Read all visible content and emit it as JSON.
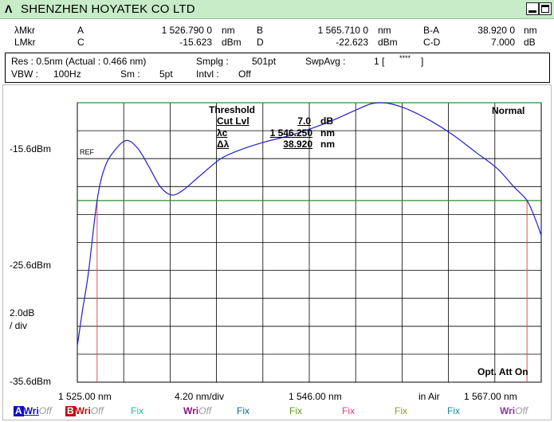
{
  "title_bar": {
    "logo": "Λ",
    "title": "SHENZHEN HOYATEK CO LTD"
  },
  "markers": {
    "row1_label": "λMkr",
    "row2_label": "LMkr",
    "A": {
      "name": "A",
      "value": "1 526.790 0",
      "unit": "nm"
    },
    "B": {
      "name": "B",
      "value": "1 565.710 0",
      "unit": "nm"
    },
    "BA": {
      "name": "B-A",
      "value": "38.920 0",
      "unit": "nm"
    },
    "C": {
      "name": "C",
      "value": "-15.623",
      "unit": "dBm"
    },
    "D": {
      "name": "D",
      "value": "-22.623",
      "unit": "dBm"
    },
    "CD": {
      "name": "C-D",
      "value": "7.000",
      "unit": "dB"
    }
  },
  "settings": {
    "res": "Res :  0.5nm  (Actual :  0.466 nm)",
    "smplg_label": "Smplg :",
    "smplg_value": "501pt",
    "swpavg_label": "SwpAvg :",
    "swpavg_value": "1 [",
    "swpavg_stars": "****",
    "swpavg_close": "]",
    "vbw_label": "VBW :",
    "vbw_value": "100Hz",
    "sm_label": "Sm :",
    "sm_value": "5pt",
    "intvl_label": "Intvl :",
    "intvl_value": "Off"
  },
  "threshold": {
    "title": "Threshold",
    "cut_lvl_label": "Cut Lvl",
    "cut_lvl_value": "7.0",
    "cut_lvl_unit": "dB",
    "lc_label": "λc",
    "lc_value": "1 546.250",
    "lc_unit": "nm",
    "dl_label": "Δλ",
    "dl_value": "38.920",
    "dl_unit": "nm"
  },
  "mode": "Normal",
  "opt_att": "Opt. Att On",
  "ref_label": "REF",
  "y_axis": {
    "top": "-15.6dBm",
    "mid": "-25.6dBm",
    "scale": "2.0dB",
    "per_div": "/ div",
    "bottom": "-35.6dBm"
  },
  "x_axis": {
    "start": "1 525.00 nm",
    "span_per_div": "4.20 nm/div",
    "center": "1 546.00 nm",
    "medium": "in Air",
    "stop": "1 567.00 nm"
  },
  "traces": [
    {
      "id": "A",
      "mode": "Wri",
      "state": "Off",
      "color": "#1010c0"
    },
    {
      "id": "B",
      "mode": "Wri",
      "state": "Off",
      "color": "#c01010"
    },
    {
      "id": "C",
      "mode": "Fix",
      "color": "#18c098"
    },
    {
      "id": "D",
      "mode": "Wri",
      "state": "Off",
      "color": "#801880"
    },
    {
      "id": "E",
      "mode": "Fix",
      "color": "#106888"
    },
    {
      "id": "F",
      "mode": "Fix",
      "color": "#609818"
    },
    {
      "id": "G",
      "mode": "Fix",
      "color": "#e83888"
    },
    {
      "id": "H",
      "mode": "Fix",
      "color": "#a09818"
    },
    {
      "id": "I",
      "mode": "Fix",
      "color": "#188898"
    },
    {
      "id": "J",
      "mode": "Wri",
      "state": "Off",
      "color": "#883898"
    }
  ],
  "chart_data": {
    "type": "line",
    "x_unit": "nm",
    "y_unit": "dBm",
    "xlim": [
      1525.0,
      1567.0
    ],
    "ylim": [
      -35.6,
      -15.6
    ],
    "x_divisions": 10,
    "y_divisions": 10,
    "ref_level": -15.6,
    "threshold_level": -22.6,
    "marker_lines": [
      1526.79,
      1565.71
    ],
    "series": [
      {
        "color": "#2020c8",
        "points": [
          [
            1525.0,
            -33.0
          ],
          [
            1525.5,
            -30.3
          ],
          [
            1526.0,
            -27.8
          ],
          [
            1526.79,
            -22.6
          ],
          [
            1527.5,
            -20.2
          ],
          [
            1528.5,
            -18.9
          ],
          [
            1529.5,
            -18.3
          ],
          [
            1530.5,
            -18.9
          ],
          [
            1531.5,
            -20.2
          ],
          [
            1532.5,
            -21.6
          ],
          [
            1533.5,
            -22.2
          ],
          [
            1534.5,
            -21.9
          ],
          [
            1536.0,
            -20.9
          ],
          [
            1538.0,
            -19.6
          ],
          [
            1540.0,
            -18.9
          ],
          [
            1542.0,
            -18.4
          ],
          [
            1544.0,
            -18.0
          ],
          [
            1546.0,
            -17.5
          ],
          [
            1548.0,
            -16.9
          ],
          [
            1550.0,
            -16.2
          ],
          [
            1551.5,
            -15.7
          ],
          [
            1552.5,
            -15.6
          ],
          [
            1553.5,
            -15.7
          ],
          [
            1555.0,
            -16.1
          ],
          [
            1557.0,
            -16.9
          ],
          [
            1559.0,
            -17.9
          ],
          [
            1561.0,
            -19.1
          ],
          [
            1563.0,
            -20.3
          ],
          [
            1564.5,
            -21.6
          ],
          [
            1565.71,
            -22.6
          ],
          [
            1566.5,
            -24.0
          ],
          [
            1567.0,
            -25.1
          ]
        ]
      }
    ]
  }
}
